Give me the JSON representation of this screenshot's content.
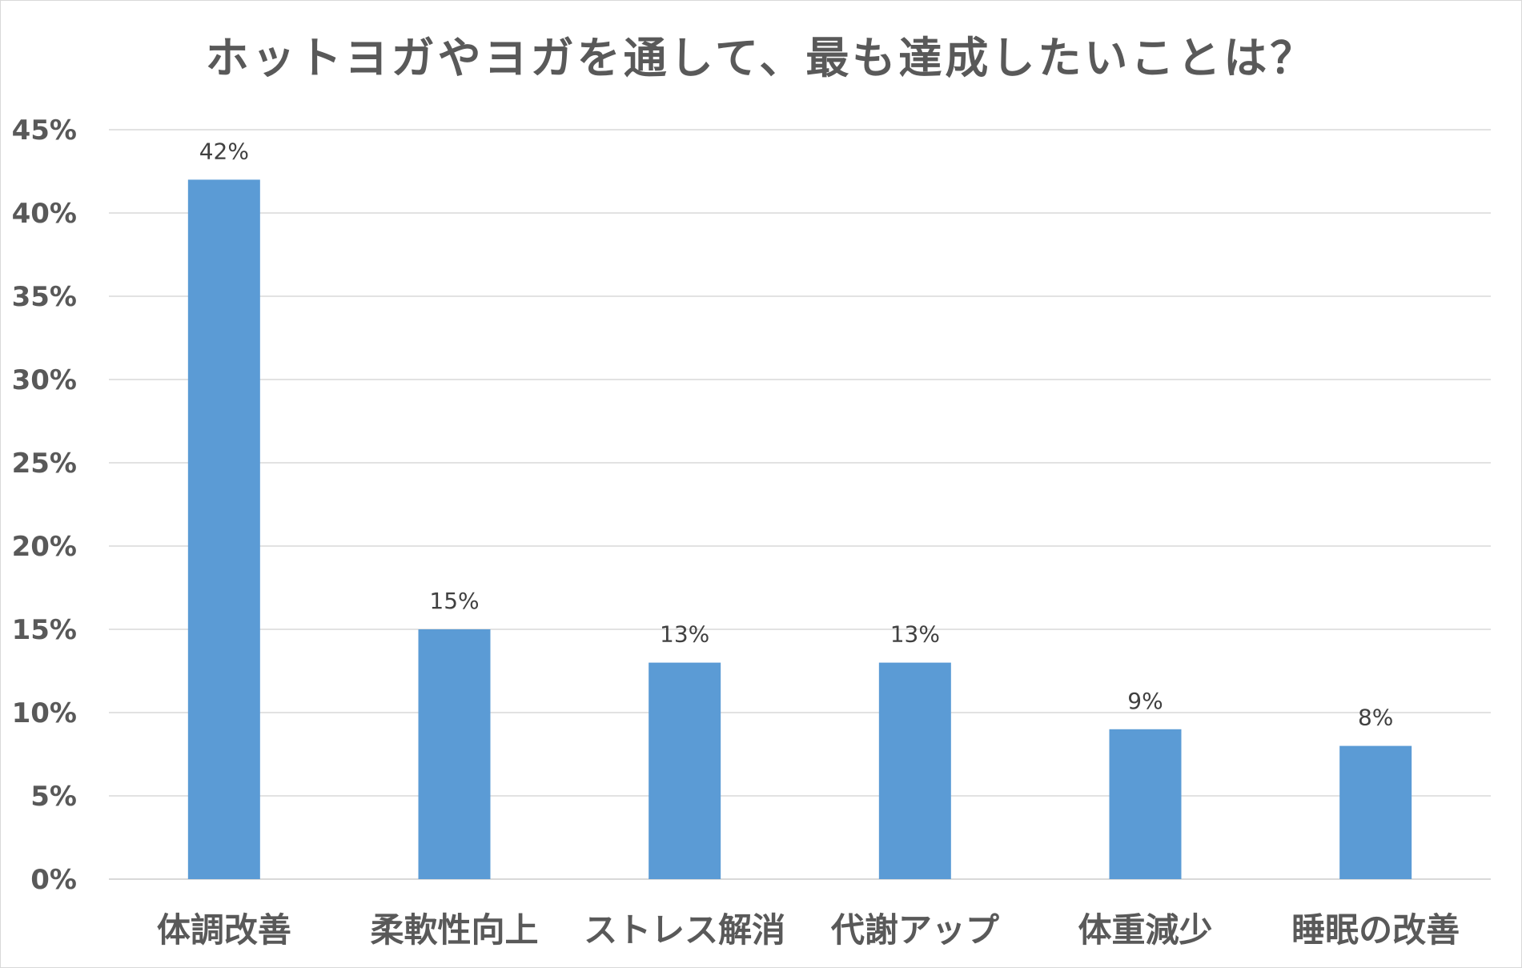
{
  "chart_data": {
    "type": "bar",
    "title": "ホットヨガやヨガを通して、最も達成したいことは？",
    "categories": [
      "体調改善",
      "柔軟性向上",
      "ストレス解消",
      "代謝アップ",
      "体重減少",
      "睡眠の改善"
    ],
    "values": [
      42,
      15,
      13,
      13,
      9,
      8
    ],
    "data_labels": [
      "42%",
      "15%",
      "13%",
      "13%",
      "9%",
      "8%"
    ],
    "yticks": [
      0,
      5,
      10,
      15,
      20,
      25,
      30,
      35,
      40,
      45
    ],
    "ytick_labels": [
      "0%",
      "5%",
      "10%",
      "15%",
      "20%",
      "25%",
      "30%",
      "35%",
      "40%",
      "45%"
    ],
    "ylim": [
      0,
      45
    ],
    "xlabel": "",
    "ylabel": "",
    "grid": true,
    "legend": "none",
    "colors": {
      "bar": "#5B9BD5",
      "grid": "#d9d9d9",
      "text": "#595959"
    }
  }
}
